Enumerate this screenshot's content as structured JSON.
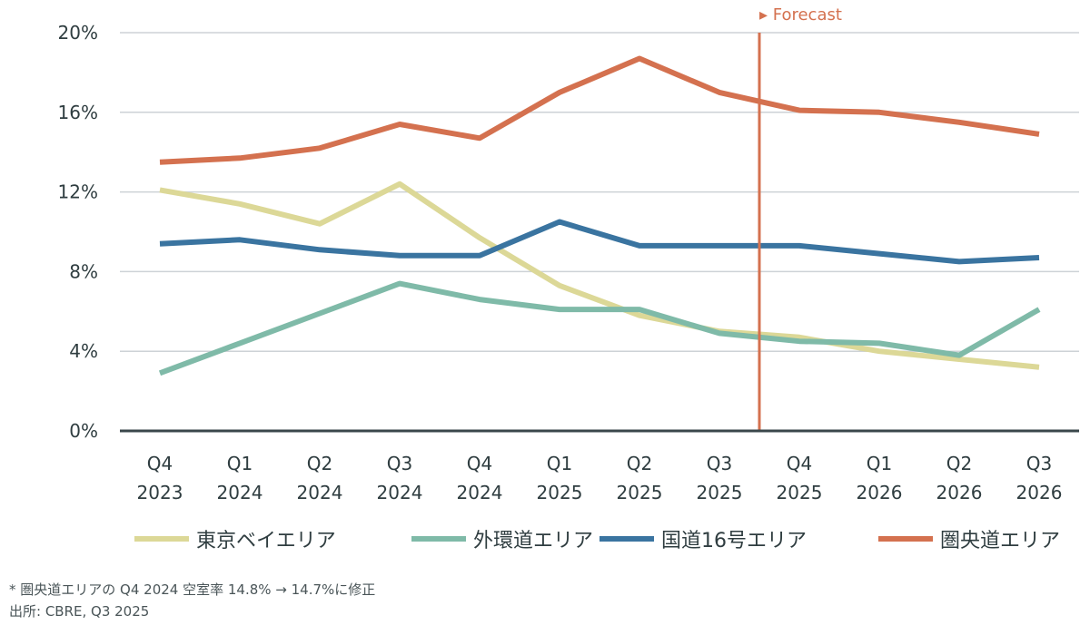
{
  "chart_data": {
    "type": "line",
    "title": "",
    "xlabel": "",
    "ylabel": "",
    "categories": [
      [
        "Q4",
        "2023"
      ],
      [
        "Q1",
        "2024"
      ],
      [
        "Q2",
        "2024"
      ],
      [
        "Q3",
        "2024"
      ],
      [
        "Q4",
        "2024"
      ],
      [
        "Q1",
        "2025"
      ],
      [
        "Q2",
        "2025"
      ],
      [
        "Q3",
        "2025"
      ],
      [
        "Q4",
        "2025"
      ],
      [
        "Q1",
        "2026"
      ],
      [
        "Q2",
        "2026"
      ],
      [
        "Q3",
        "2026"
      ]
    ],
    "ylim": [
      0,
      20
    ],
    "yticks": [
      0,
      4,
      8,
      12,
      16,
      20
    ],
    "ytick_labels": [
      "0%",
      "4%",
      "8%",
      "12%",
      "16%",
      "20%"
    ],
    "y_unit": "%",
    "grid": true,
    "legend_position": "bottom",
    "annotation": {
      "label": "▸ Forecast",
      "position_between": [
        "Q3 2025",
        "Q4 2025"
      ],
      "color": "#d4714f"
    },
    "series": [
      {
        "name": "東京ベイエリア",
        "color": "#dcd897",
        "values": [
          12.1,
          11.4,
          10.4,
          12.4,
          9.7,
          7.3,
          5.8,
          5.0,
          4.7,
          4.0,
          3.6,
          3.2
        ]
      },
      {
        "name": "外環道エリア",
        "color": "#7fbaa8",
        "values": [
          2.9,
          4.4,
          5.9,
          7.4,
          6.6,
          6.1,
          6.1,
          4.9,
          4.5,
          4.4,
          3.8,
          6.1
        ]
      },
      {
        "name": "国道16号エリア",
        "color": "#3a74a0",
        "values": [
          9.4,
          9.6,
          9.1,
          8.8,
          8.8,
          10.5,
          9.3,
          9.3,
          9.3,
          8.9,
          8.5,
          8.7
        ]
      },
      {
        "name": "圏央道エリア",
        "color": "#d4714f",
        "values": [
          13.5,
          13.7,
          14.2,
          15.4,
          14.7,
          17.0,
          18.7,
          17.0,
          16.1,
          16.0,
          15.5,
          14.9
        ]
      }
    ]
  },
  "footnote": {
    "note": "* 圏央道エリアの Q4 2024 空室率 14.8% → 14.7%に修正",
    "source": "出所: CBRE, Q3 2025"
  }
}
